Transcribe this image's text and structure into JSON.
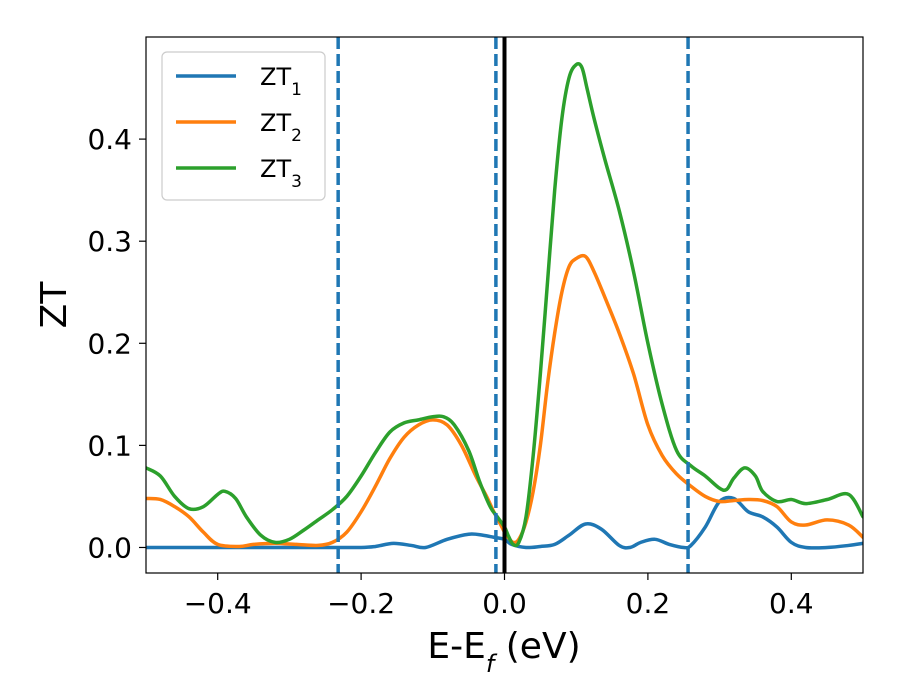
{
  "chart_data": {
    "type": "line",
    "xlabel_main": "E-E",
    "xlabel_sub": "f",
    "xlabel_tail": " (eV)",
    "ylabel": "ZT",
    "xlim": [
      -0.5,
      0.5
    ],
    "ylim": [
      -0.025,
      0.5
    ],
    "x_ticks": [
      -0.4,
      -0.2,
      0.0,
      0.2,
      0.4
    ],
    "x_tick_labels": [
      "−0.4",
      "−0.2",
      "0.0",
      "0.2",
      "0.4"
    ],
    "y_ticks": [
      0.0,
      0.1,
      0.2,
      0.3,
      0.4
    ],
    "y_tick_labels": [
      "0.0",
      "0.1",
      "0.2",
      "0.3",
      "0.4"
    ],
    "grid": false,
    "legend": "top-left",
    "vlines": [
      {
        "x": -0.232,
        "style": "dashed",
        "color": "#1f77b4"
      },
      {
        "x": -0.012,
        "style": "dashed",
        "color": "#1f77b4"
      },
      {
        "x": 0.0,
        "style": "solid",
        "color": "#000000"
      },
      {
        "x": 0.256,
        "style": "dashed",
        "color": "#1f77b4"
      }
    ],
    "series": [
      {
        "name": "ZT",
        "sub": "1",
        "color": "#1f77b4",
        "x": [
          -0.5,
          -0.45,
          -0.4,
          -0.35,
          -0.3,
          -0.25,
          -0.2,
          -0.18,
          -0.155,
          -0.13,
          -0.11,
          -0.08,
          -0.05,
          -0.03,
          -0.015,
          0.0,
          0.01,
          0.03,
          0.05,
          0.07,
          0.09,
          0.113,
          0.135,
          0.16,
          0.175,
          0.19,
          0.21,
          0.23,
          0.25,
          0.26,
          0.28,
          0.3,
          0.32,
          0.34,
          0.36,
          0.38,
          0.4,
          0.42,
          0.45,
          0.48,
          0.5
        ],
        "y": [
          0.0,
          0.0,
          0.0,
          0.0,
          0.0,
          0.0,
          0.0,
          0.001,
          0.004,
          0.002,
          0.0,
          0.008,
          0.013,
          0.012,
          0.01,
          0.008,
          0.003,
          0.0,
          0.001,
          0.003,
          0.012,
          0.023,
          0.018,
          0.002,
          0.0,
          0.005,
          0.008,
          0.003,
          0.0,
          0.002,
          0.02,
          0.045,
          0.048,
          0.035,
          0.03,
          0.02,
          0.005,
          0.0,
          0.0,
          0.002,
          0.004
        ]
      },
      {
        "name": "ZT",
        "sub": "2",
        "color": "#ff7f0e",
        "x": [
          -0.5,
          -0.48,
          -0.46,
          -0.44,
          -0.42,
          -0.4,
          -0.37,
          -0.35,
          -0.32,
          -0.29,
          -0.26,
          -0.24,
          -0.22,
          -0.2,
          -0.18,
          -0.16,
          -0.14,
          -0.12,
          -0.1,
          -0.08,
          -0.06,
          -0.04,
          -0.025,
          -0.015,
          -0.005,
          0.0,
          0.005,
          0.012,
          0.02,
          0.03,
          0.04,
          0.05,
          0.06,
          0.07,
          0.08,
          0.09,
          0.1,
          0.113,
          0.125,
          0.14,
          0.16,
          0.18,
          0.2,
          0.22,
          0.24,
          0.26,
          0.28,
          0.3,
          0.32,
          0.34,
          0.36,
          0.38,
          0.4,
          0.42,
          0.45,
          0.48,
          0.5
        ],
        "y": [
          0.048,
          0.047,
          0.04,
          0.03,
          0.015,
          0.003,
          0.001,
          0.003,
          0.004,
          0.003,
          0.002,
          0.005,
          0.015,
          0.035,
          0.06,
          0.087,
          0.108,
          0.12,
          0.125,
          0.12,
          0.1,
          0.07,
          0.05,
          0.035,
          0.022,
          0.015,
          0.01,
          0.005,
          0.008,
          0.025,
          0.055,
          0.1,
          0.16,
          0.21,
          0.25,
          0.275,
          0.283,
          0.285,
          0.27,
          0.245,
          0.21,
          0.17,
          0.12,
          0.09,
          0.072,
          0.06,
          0.05,
          0.045,
          0.046,
          0.047,
          0.046,
          0.04,
          0.025,
          0.022,
          0.027,
          0.022,
          0.01
        ]
      },
      {
        "name": "ZT",
        "sub": "3",
        "color": "#2ca02c",
        "x": [
          -0.5,
          -0.48,
          -0.46,
          -0.44,
          -0.42,
          -0.4,
          -0.39,
          -0.375,
          -0.36,
          -0.34,
          -0.32,
          -0.3,
          -0.28,
          -0.26,
          -0.24,
          -0.22,
          -0.2,
          -0.18,
          -0.16,
          -0.14,
          -0.12,
          -0.1,
          -0.085,
          -0.07,
          -0.05,
          -0.035,
          -0.02,
          -0.01,
          0.0,
          0.005,
          0.012,
          0.02,
          0.03,
          0.04,
          0.05,
          0.06,
          0.07,
          0.08,
          0.09,
          0.1,
          0.108,
          0.115,
          0.125,
          0.14,
          0.16,
          0.18,
          0.2,
          0.22,
          0.24,
          0.26,
          0.28,
          0.3,
          0.31,
          0.32,
          0.335,
          0.35,
          0.36,
          0.38,
          0.4,
          0.42,
          0.45,
          0.48,
          0.5
        ],
        "y": [
          0.078,
          0.07,
          0.05,
          0.038,
          0.04,
          0.052,
          0.055,
          0.048,
          0.03,
          0.012,
          0.005,
          0.008,
          0.017,
          0.027,
          0.037,
          0.05,
          0.07,
          0.093,
          0.113,
          0.122,
          0.125,
          0.128,
          0.128,
          0.12,
          0.095,
          0.065,
          0.04,
          0.03,
          0.02,
          0.012,
          0.003,
          0.005,
          0.03,
          0.09,
          0.17,
          0.26,
          0.35,
          0.42,
          0.46,
          0.473,
          0.47,
          0.45,
          0.42,
          0.38,
          0.33,
          0.27,
          0.2,
          0.14,
          0.095,
          0.08,
          0.07,
          0.058,
          0.057,
          0.068,
          0.078,
          0.07,
          0.055,
          0.045,
          0.047,
          0.043,
          0.047,
          0.052,
          0.03
        ]
      }
    ]
  }
}
